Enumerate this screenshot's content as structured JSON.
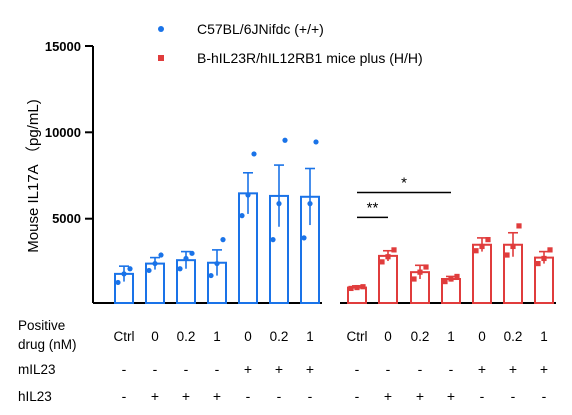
{
  "chart_data": {
    "type": "bar",
    "ylabel": "Mouse IL17A （pg/mL)",
    "ylim": [
      0,
      15000
    ],
    "yticks": [
      "5000",
      "10000",
      "15000"
    ],
    "grid": false,
    "legend_position": "top",
    "row_labels": {
      "drug_line1": "Positive",
      "drug_line2": "drug (nM)",
      "mil23": "mIL23",
      "hil23": "hIL23"
    },
    "groups": [
      {
        "name": "C57BL/6JNifdc (+/+)",
        "color": "#1a73e8",
        "categories": [
          "Ctrl",
          "0",
          "0.2",
          "1",
          "0",
          "0.2",
          "1"
        ],
        "mIL23": [
          "-",
          "-",
          "-",
          "-",
          "+",
          "+",
          "+"
        ],
        "hIL23": [
          "-",
          "+",
          "+",
          "+",
          "-",
          "-",
          "-"
        ],
        "means": [
          1700,
          2300,
          2500,
          2350,
          6400,
          6250,
          6200
        ],
        "errors": [
          450,
          350,
          500,
          750,
          1200,
          1800,
          1650
        ],
        "points": [
          [
            1200,
            1700,
            2000
          ],
          [
            1900,
            2300,
            2800
          ],
          [
            2000,
            2600,
            2900
          ],
          [
            1600,
            2300,
            3700
          ],
          [
            5100,
            6300,
            8700
          ],
          [
            3700,
            5800,
            9500
          ],
          [
            3800,
            5800,
            9400
          ]
        ]
      },
      {
        "name": "B-hIL23R/hIL12RB1 mice plus (H/H)",
        "color": "#e03c3c",
        "categories": [
          "Ctrl",
          "0",
          "0.2",
          "1",
          "0",
          "0.2",
          "1"
        ],
        "mIL23": [
          "-",
          "-",
          "-",
          "-",
          "+",
          "+",
          "+"
        ],
        "hIL23": [
          "-",
          "+",
          "+",
          "+",
          "-",
          "-",
          "-"
        ],
        "means": [
          900,
          2750,
          1800,
          1400,
          3400,
          3400,
          2650
        ],
        "errors": [
          100,
          300,
          400,
          150,
          400,
          700,
          350
        ],
        "points": [
          [
            850,
            900,
            950
          ],
          [
            2400,
            2700,
            3100
          ],
          [
            1400,
            1800,
            2100
          ],
          [
            1250,
            1400,
            1550
          ],
          [
            3050,
            3300,
            3700
          ],
          [
            2800,
            3300,
            4500
          ],
          [
            2300,
            2600,
            3100
          ]
        ]
      }
    ],
    "annotations": [
      {
        "label": "**",
        "from_bar": 7,
        "to_bar": 8,
        "y": 5000
      },
      {
        "label": "*",
        "from_bar": 7,
        "to_bar": 10,
        "y": 6450
      }
    ]
  }
}
